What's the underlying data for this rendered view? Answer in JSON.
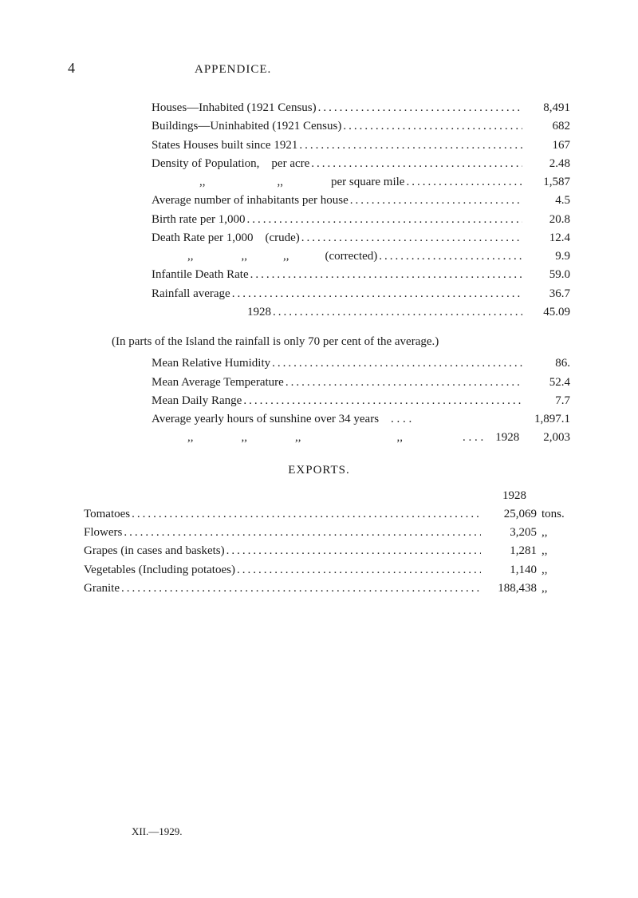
{
  "header": {
    "pageNumber": "4",
    "title": "APPENDICE."
  },
  "stats1": [
    {
      "label": "Houses—Inhabited (1921 Census)",
      "value": "8,491"
    },
    {
      "label": "Buildings—Uninhabited (1921 Census)",
      "value": "682"
    },
    {
      "label": "States Houses built since 1921",
      "value": "167"
    },
    {
      "label": "Density of Population, per acre",
      "value": "2.48"
    },
    {
      "label": "    ,,      ,,    per square mile",
      "value": "1,587"
    },
    {
      "label": "Average number of inhabitants per house",
      "value": "4.5"
    },
    {
      "label": "Birth rate per 1,000",
      "value": "20.8"
    },
    {
      "label": "Death Rate per 1,000 (crude)",
      "value": "12.4"
    },
    {
      "label": "   ,,    ,,   ,,   (corrected)",
      "value": "9.9"
    },
    {
      "label": "Infantile Death Rate",
      "value": "59.0"
    },
    {
      "label": "Rainfall average",
      "value": "36.7"
    },
    {
      "label": "        1928",
      "value": "45.09"
    }
  ],
  "note": "(In parts of the Island the rainfall is only 70 per cent of the average.)",
  "stats2": [
    {
      "label": "Mean Relative Humidity",
      "value": "86."
    },
    {
      "label": "Mean Average Temperature",
      "value": "52.4"
    },
    {
      "label": "Mean Daily Range",
      "value": "7.7"
    },
    {
      "label": "Average yearly hours of sunshine over 34 years . . . .",
      "value": "1,897.1",
      "nodots": true
    },
    {
      "label": "   ,,    ,,    ,,        ,,     . . . . 1928",
      "value": "2,003",
      "nodots": true
    }
  ],
  "exports": {
    "title": "EXPORTS.",
    "year": "1928",
    "items": [
      {
        "label": "Tomatoes",
        "value": "25,069",
        "unit": "tons."
      },
      {
        "label": "Flowers",
        "value": "3,205",
        "unit": ",,"
      },
      {
        "label": "Grapes (in cases and baskets)",
        "value": "1,281",
        "unit": ",,"
      },
      {
        "label": "Vegetables (Including potatoes)",
        "value": "1,140",
        "unit": ",,"
      },
      {
        "label": "Granite",
        "value": "188,438",
        "unit": ",,"
      }
    ]
  },
  "footer": "XII.—1929."
}
